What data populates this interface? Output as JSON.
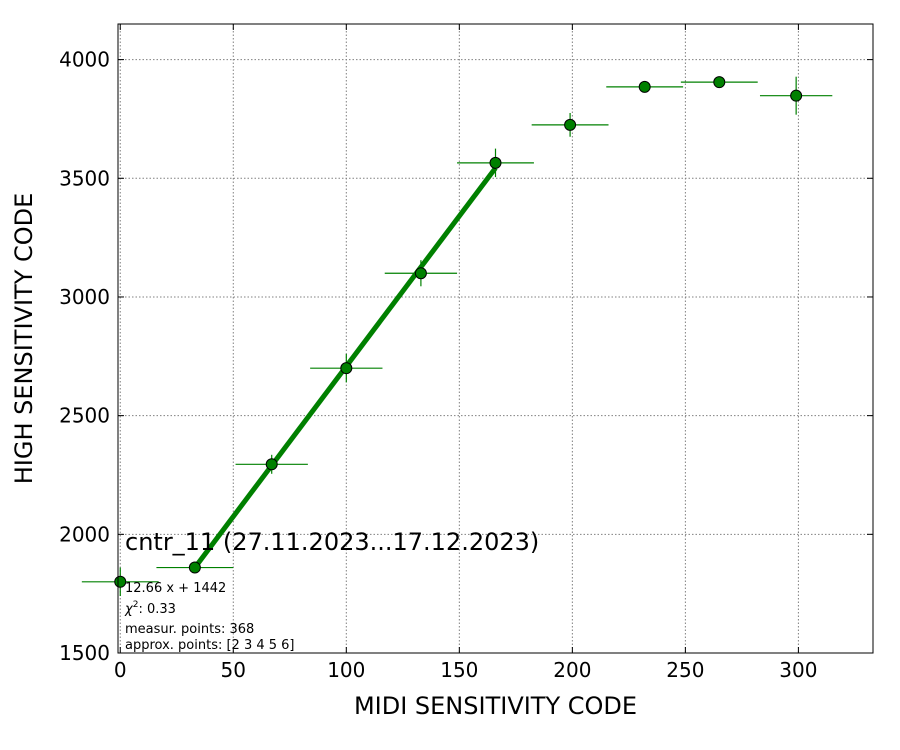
{
  "chart_data": {
    "type": "scatter",
    "title": "cntr_11 (27.11.2023...17.12.2023)",
    "xlabel": "MIDI SENSITIVITY CODE",
    "ylabel": "HIGH SENSITIVITY CODE",
    "xlim": [
      -1,
      333
    ],
    "ylim": [
      1500,
      4150
    ],
    "xticks": [
      0,
      50,
      100,
      150,
      200,
      250,
      300
    ],
    "yticks": [
      1500,
      2000,
      2500,
      3000,
      3500,
      4000
    ],
    "grid": true,
    "colors": {
      "marker": "#008000",
      "errorbar": "#008000",
      "fit": "#008000",
      "marker_edge": "#000000"
    },
    "points": [
      {
        "x": 0,
        "y": 1800,
        "xerr": 17,
        "yerr": 60
      },
      {
        "x": 33,
        "y": 1860,
        "xerr": 17,
        "yerr": 0
      },
      {
        "x": 67,
        "y": 2295,
        "xerr": 16,
        "yerr": 40
      },
      {
        "x": 100,
        "y": 2700,
        "xerr": 16,
        "yerr": 60
      },
      {
        "x": 133,
        "y": 3100,
        "xerr": 16,
        "yerr": 55
      },
      {
        "x": 166,
        "y": 3565,
        "xerr": 17,
        "yerr": 60
      },
      {
        "x": 199,
        "y": 3725,
        "xerr": 17,
        "yerr": 50
      },
      {
        "x": 232,
        "y": 3885,
        "xerr": 17,
        "yerr": 0
      },
      {
        "x": 265,
        "y": 3905,
        "xerr": 17,
        "yerr": 0
      },
      {
        "x": 299,
        "y": 3848,
        "xerr": 16,
        "yerr": 80
      }
    ],
    "fit": {
      "slope": 12.66,
      "intercept": 1442,
      "x_range": [
        33,
        166
      ]
    },
    "annotations": {
      "equation": "12.66 x + 1442",
      "chi2": "0.33",
      "measur_points": "measur. points: 368",
      "approx_points": "approx. points: [2 3 4 5 6]"
    }
  }
}
